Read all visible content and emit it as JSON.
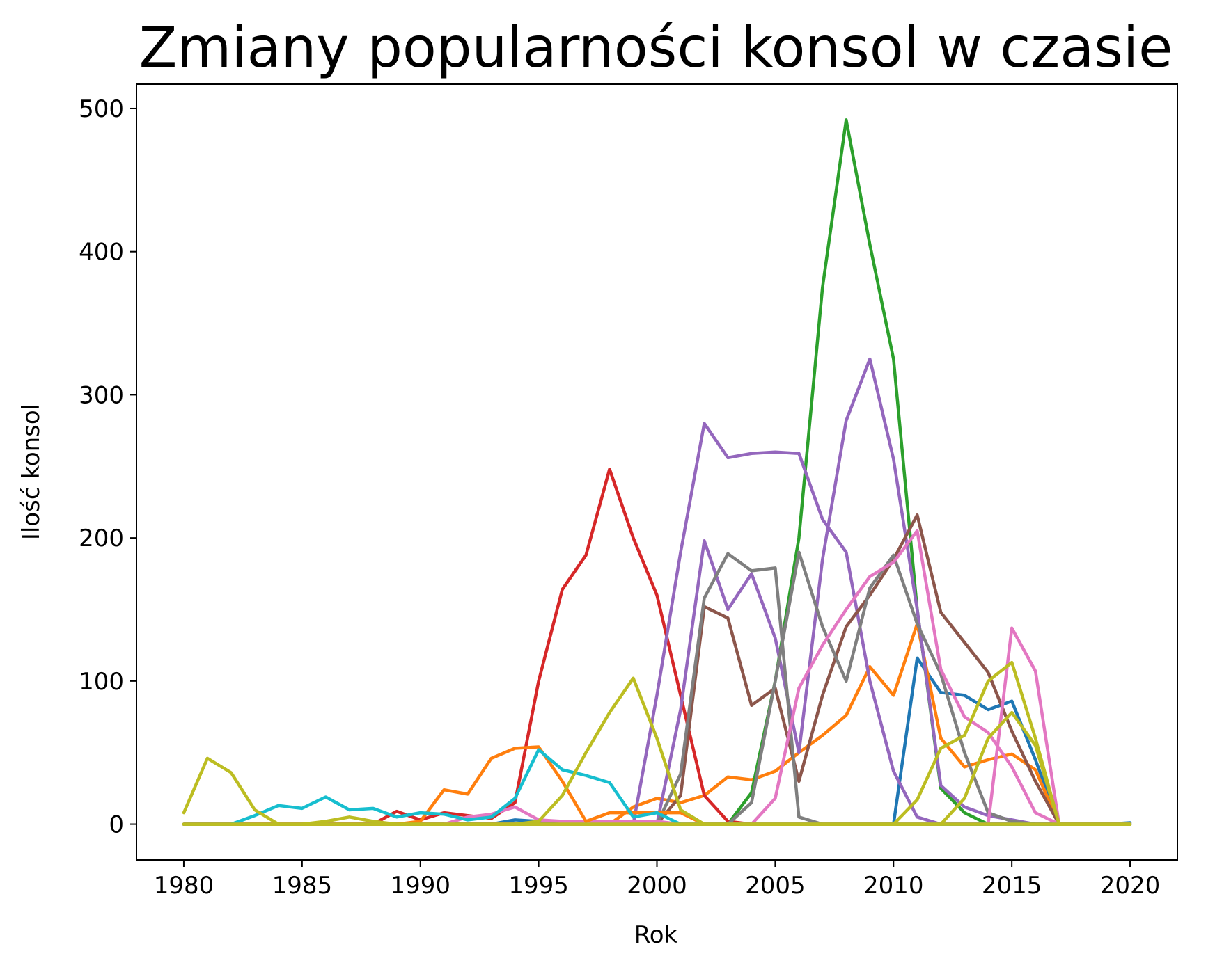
{
  "chart_data": {
    "type": "line",
    "title": "Zmiany popularności konsol w czasie",
    "xlabel": "Rok",
    "ylabel": "Ilość konsol",
    "xlim": [
      1978,
      2022
    ],
    "ylim": [
      -25,
      517
    ],
    "xticks": [
      1980,
      1985,
      1990,
      1995,
      2000,
      2005,
      2010,
      2015,
      2020
    ],
    "yticks": [
      0,
      100,
      200,
      300,
      400,
      500
    ],
    "grid": false,
    "legend": "none",
    "x": [
      1980,
      1981,
      1982,
      1983,
      1984,
      1985,
      1986,
      1987,
      1988,
      1989,
      1990,
      1991,
      1992,
      1993,
      1994,
      1995,
      1996,
      1997,
      1998,
      1999,
      2000,
      2001,
      2002,
      2003,
      2004,
      2005,
      2006,
      2007,
      2008,
      2009,
      2010,
      2011,
      2012,
      2013,
      2014,
      2015,
      2016,
      2017,
      2018,
      2019,
      2020
    ],
    "series": [
      {
        "color": "#1f77b4",
        "values": [
          0,
          0,
          0,
          0,
          0,
          0,
          0,
          0,
          0,
          0,
          0,
          0,
          0,
          0,
          3,
          2,
          0,
          0,
          0,
          0,
          0,
          0,
          0,
          0,
          0,
          0,
          0,
          0,
          0,
          0,
          0,
          116,
          92,
          90,
          80,
          86,
          45,
          0,
          0,
          0,
          1
        ]
      },
      {
        "color": "#ff7f0e",
        "values": [
          0,
          0,
          0,
          0,
          0,
          0,
          0,
          0,
          0,
          0,
          0,
          0,
          0,
          0,
          0,
          0,
          0,
          0,
          0,
          12,
          18,
          15,
          20,
          33,
          31,
          37,
          50,
          62,
          76,
          110,
          90,
          140,
          60,
          40,
          45,
          49,
          38,
          0,
          0,
          0,
          0
        ]
      },
      {
        "color": "#2ca02c",
        "values": [
          0,
          0,
          0,
          0,
          0,
          0,
          0,
          0,
          0,
          0,
          0,
          0,
          0,
          0,
          0,
          0,
          0,
          0,
          0,
          0,
          0,
          0,
          0,
          0,
          22,
          100,
          200,
          375,
          492,
          405,
          325,
          150,
          25,
          8,
          0,
          0,
          0,
          0,
          0,
          0,
          0
        ]
      },
      {
        "color": "#d62728",
        "values": [
          0,
          0,
          0,
          0,
          0,
          0,
          0,
          0,
          0,
          9,
          3,
          8,
          6,
          4,
          15,
          100,
          164,
          188,
          248,
          200,
          160,
          90,
          20,
          2,
          0,
          0,
          0,
          0,
          0,
          0,
          0,
          0,
          0,
          0,
          0,
          0,
          0,
          0,
          0,
          0,
          0
        ]
      },
      {
        "color": "#9467bd",
        "values": [
          0,
          0,
          0,
          0,
          0,
          0,
          0,
          0,
          0,
          0,
          0,
          0,
          0,
          0,
          0,
          0,
          0,
          0,
          0,
          0,
          0,
          0,
          0,
          0,
          0,
          0,
          0,
          0,
          0,
          0,
          0,
          0,
          0,
          0,
          0,
          0,
          0,
          0,
          0,
          0,
          0
        ]
      },
      {
        "color": "#9467bd",
        "values": [
          0,
          0,
          0,
          0,
          0,
          0,
          0,
          0,
          0,
          0,
          0,
          0,
          0,
          0,
          0,
          0,
          0,
          0,
          0,
          0,
          90,
          190,
          280,
          256,
          259,
          260,
          259,
          213,
          190,
          100,
          37,
          5,
          0,
          0,
          0,
          0,
          0,
          0,
          0,
          0,
          0
        ]
      },
      {
        "color": "#9467bd",
        "values": [
          0,
          0,
          0,
          0,
          0,
          0,
          0,
          0,
          0,
          0,
          0,
          0,
          0,
          0,
          0,
          0,
          0,
          0,
          0,
          0,
          0,
          80,
          198,
          150,
          175,
          130,
          50,
          185,
          282,
          325,
          255,
          150,
          27,
          12,
          6,
          3,
          0,
          0,
          0,
          0,
          0
        ]
      },
      {
        "color": "#8c564b",
        "values": [
          0,
          0,
          0,
          0,
          0,
          0,
          0,
          0,
          0,
          0,
          0,
          0,
          0,
          0,
          0,
          0,
          0,
          0,
          0,
          0,
          0,
          20,
          152,
          144,
          83,
          95,
          30,
          90,
          138,
          160,
          185,
          216,
          148,
          127,
          106,
          65,
          30,
          0,
          0,
          0,
          0
        ]
      },
      {
        "color": "#7f7f7f",
        "values": [
          0,
          0,
          0,
          0,
          0,
          0,
          0,
          0,
          0,
          0,
          0,
          0,
          0,
          0,
          0,
          0,
          0,
          0,
          0,
          0,
          0,
          35,
          158,
          189,
          177,
          179,
          5,
          0,
          0,
          0,
          0,
          0,
          0,
          0,
          0,
          0,
          0,
          0,
          0,
          0,
          0
        ]
      },
      {
        "color": "#7f7f7f",
        "values": [
          0,
          0,
          0,
          0,
          0,
          0,
          0,
          0,
          0,
          0,
          0,
          0,
          0,
          0,
          0,
          0,
          0,
          0,
          0,
          0,
          0,
          0,
          0,
          0,
          15,
          100,
          190,
          138,
          100,
          165,
          188,
          140,
          105,
          50,
          8,
          2,
          0,
          0,
          0,
          0,
          0
        ]
      },
      {
        "color": "#e377c2",
        "values": [
          0,
          0,
          0,
          0,
          0,
          0,
          0,
          0,
          0,
          0,
          0,
          0,
          5,
          7,
          12,
          3,
          2,
          2,
          2,
          2,
          2,
          0,
          0,
          0,
          0,
          18,
          95,
          125,
          150,
          173,
          183,
          205,
          108,
          75,
          64,
          40,
          8,
          0,
          0,
          0,
          0
        ]
      },
      {
        "color": "#e377c2",
        "values": [
          0,
          0,
          0,
          0,
          0,
          0,
          0,
          0,
          0,
          0,
          0,
          0,
          0,
          0,
          0,
          0,
          0,
          0,
          0,
          0,
          0,
          0,
          0,
          0,
          0,
          0,
          0,
          0,
          0,
          0,
          0,
          0,
          0,
          0,
          0,
          137,
          107,
          0,
          0,
          0,
          0
        ]
      },
      {
        "color": "#ff7f0e",
        "values": [
          0,
          0,
          0,
          0,
          0,
          0,
          0,
          0,
          0,
          0,
          2,
          24,
          21,
          46,
          53,
          54,
          30,
          2,
          8,
          8,
          8,
          8,
          0,
          0,
          0,
          0,
          0,
          0,
          0,
          0,
          0,
          0,
          0,
          0,
          0,
          0,
          0,
          0,
          0,
          0,
          0
        ]
      },
      {
        "color": "#17becf",
        "values": [
          0,
          0,
          0,
          6,
          13,
          11,
          19,
          10,
          11,
          5,
          8,
          7,
          3,
          5,
          18,
          52,
          38,
          34,
          29,
          5,
          8,
          0,
          0,
          0,
          0,
          0,
          0,
          0,
          0,
          0,
          0,
          0,
          0,
          0,
          0,
          0,
          0,
          0,
          0,
          0,
          0
        ]
      },
      {
        "color": "#bcbd22",
        "values": [
          8,
          46,
          36,
          10,
          0,
          0,
          2,
          5,
          2,
          0,
          0,
          0,
          0,
          0,
          0,
          2,
          20,
          50,
          78,
          102,
          60,
          10,
          0,
          0,
          0,
          0,
          0,
          0,
          0,
          0,
          0,
          0,
          0,
          0,
          0,
          0,
          0,
          0,
          0,
          0,
          0
        ]
      },
      {
        "color": "#bcbd22",
        "values": [
          0,
          0,
          0,
          0,
          0,
          0,
          0,
          0,
          0,
          0,
          0,
          0,
          0,
          0,
          0,
          0,
          0,
          0,
          0,
          0,
          0,
          0,
          0,
          0,
          0,
          0,
          0,
          0,
          0,
          0,
          0,
          17,
          53,
          62,
          100,
          113,
          60,
          0,
          0,
          0,
          0
        ]
      },
      {
        "color": "#bcbd22",
        "values": [
          0,
          0,
          0,
          0,
          0,
          0,
          0,
          0,
          0,
          0,
          0,
          0,
          0,
          0,
          0,
          0,
          0,
          0,
          0,
          0,
          0,
          0,
          0,
          0,
          0,
          0,
          0,
          0,
          0,
          0,
          0,
          0,
          0,
          18,
          60,
          78,
          55,
          0,
          0,
          0,
          0
        ]
      }
    ]
  }
}
